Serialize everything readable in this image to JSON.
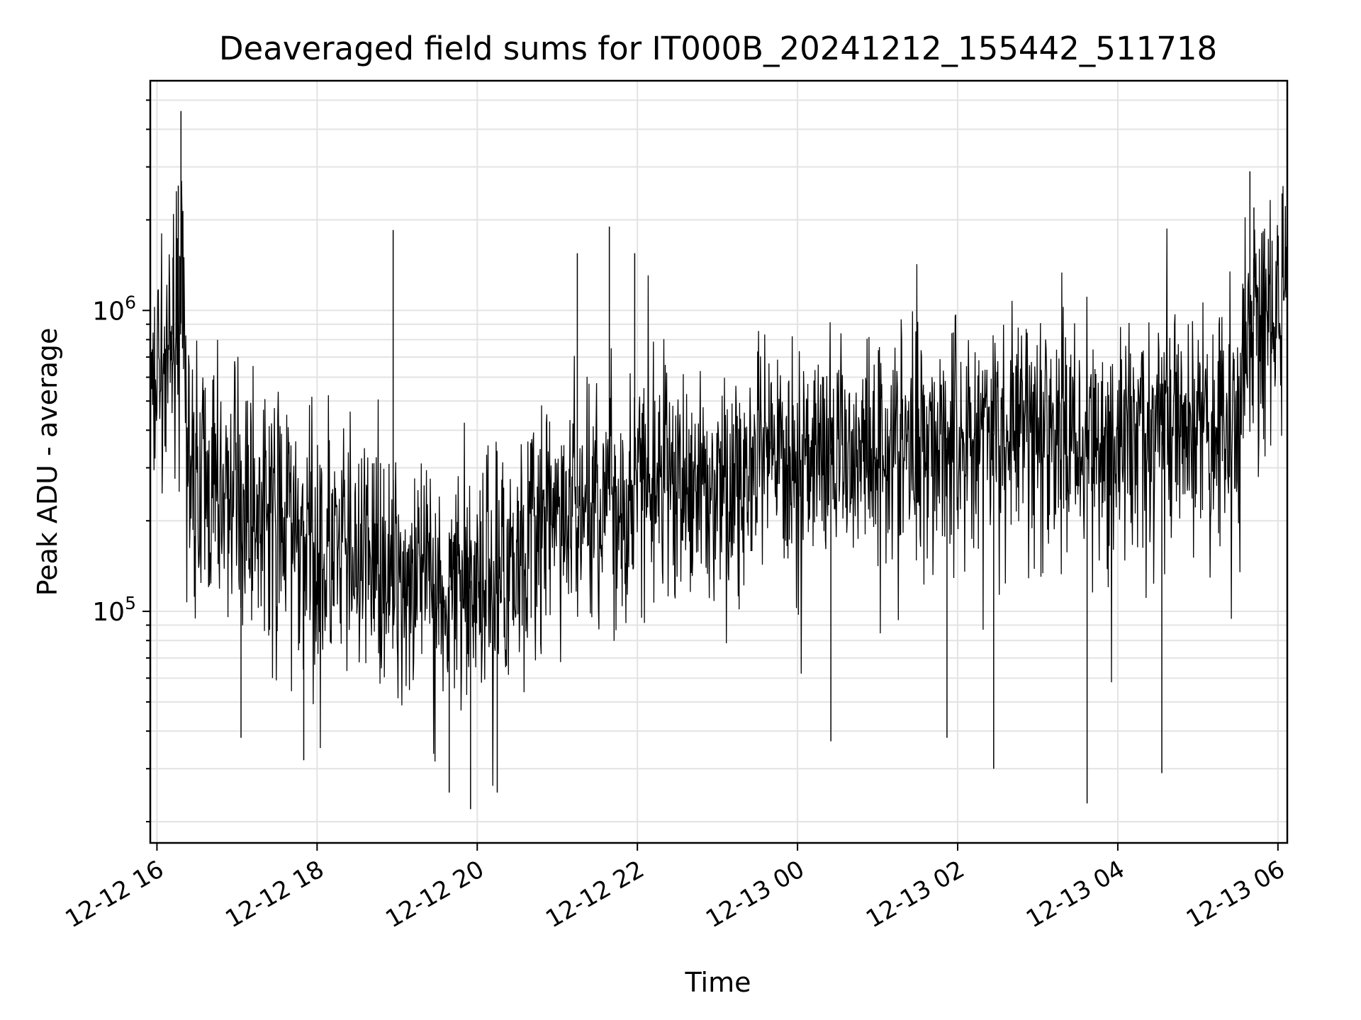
{
  "chart_data": {
    "type": "line",
    "title": "Deaveraged field sums for IT000B_20241212_155442_511718",
    "xlabel": "Time",
    "ylabel": "Peak ADU - average",
    "x_scale": "time",
    "y_scale": "log",
    "xlim": [
      "2024-12-12 15:55",
      "2024-12-13 06:07"
    ],
    "ylim": [
      17000,
      5800000
    ],
    "grid": true,
    "legend": "none",
    "line_color": "#000000",
    "x_ticks": [
      {
        "time": "2024-12-12 16:00",
        "label": "12-12 16"
      },
      {
        "time": "2024-12-12 18:00",
        "label": "12-12 18"
      },
      {
        "time": "2024-12-12 20:00",
        "label": "12-12 20"
      },
      {
        "time": "2024-12-12 22:00",
        "label": "12-12 22"
      },
      {
        "time": "2024-12-13 00:00",
        "label": "12-13 00"
      },
      {
        "time": "2024-12-13 02:00",
        "label": "12-13 02"
      },
      {
        "time": "2024-12-13 04:00",
        "label": "12-13 04"
      },
      {
        "time": "2024-12-13 06:00",
        "label": "12-13 06"
      }
    ],
    "y_ticks": [
      {
        "value": 100000,
        "base": "10",
        "exp": "5"
      },
      {
        "value": 1000000,
        "base": "10",
        "exp": "6"
      }
    ],
    "series": [
      {
        "points": [
          [
            "2024-12-12 15:55",
            380000
          ],
          [
            "2024-12-12 16:00",
            650000
          ],
          [
            "2024-12-12 16:05",
            720000
          ],
          [
            "2024-12-12 16:10",
            760000
          ],
          [
            "2024-12-12 16:15",
            950000
          ],
          [
            "2024-12-12 16:20",
            880000
          ],
          [
            "2024-12-12 16:25",
            280000
          ],
          [
            "2024-12-12 16:35",
            260000
          ],
          [
            "2024-12-12 16:45",
            250000
          ],
          [
            "2024-12-12 17:00",
            240000
          ],
          [
            "2024-12-12 17:15",
            230000
          ],
          [
            "2024-12-12 17:30",
            210000
          ],
          [
            "2024-12-12 17:45",
            180000
          ],
          [
            "2024-12-12 18:00",
            160000
          ],
          [
            "2024-12-12 18:15",
            155000
          ],
          [
            "2024-12-12 18:30",
            150000
          ],
          [
            "2024-12-12 18:45",
            140000
          ],
          [
            "2024-12-12 19:00",
            135000
          ],
          [
            "2024-12-12 19:15",
            130000
          ],
          [
            "2024-12-12 19:30",
            125000
          ],
          [
            "2024-12-12 19:45",
            120000
          ],
          [
            "2024-12-12 20:00",
            130000
          ],
          [
            "2024-12-12 20:15",
            145000
          ],
          [
            "2024-12-12 20:30",
            165000
          ],
          [
            "2024-12-12 20:45",
            185000
          ],
          [
            "2024-12-12 21:00",
            205000
          ],
          [
            "2024-12-12 21:15",
            220000
          ],
          [
            "2024-12-12 21:30",
            235000
          ],
          [
            "2024-12-12 21:45",
            250000
          ],
          [
            "2024-12-12 22:00",
            265000
          ],
          [
            "2024-12-12 22:15",
            275000
          ],
          [
            "2024-12-12 22:30",
            280000
          ],
          [
            "2024-12-12 22:45",
            270000
          ],
          [
            "2024-12-12 23:00",
            265000
          ],
          [
            "2024-12-12 23:15",
            275000
          ],
          [
            "2024-12-12 23:30",
            290000
          ],
          [
            "2024-12-12 23:45",
            310000
          ],
          [
            "2024-12-13 00:00",
            330000
          ],
          [
            "2024-12-13 00:15",
            345000
          ],
          [
            "2024-12-13 00:30",
            350000
          ],
          [
            "2024-12-13 00:45",
            355000
          ],
          [
            "2024-12-13 01:00",
            360000
          ],
          [
            "2024-12-13 01:15",
            365000
          ],
          [
            "2024-12-13 01:30",
            370000
          ],
          [
            "2024-12-13 01:45",
            375000
          ],
          [
            "2024-12-13 02:00",
            380000
          ],
          [
            "2024-12-13 02:15",
            385000
          ],
          [
            "2024-12-13 02:30",
            390000
          ],
          [
            "2024-12-13 02:45",
            390000
          ],
          [
            "2024-12-13 03:00",
            395000
          ],
          [
            "2024-12-13 03:15",
            400000
          ],
          [
            "2024-12-13 03:30",
            400000
          ],
          [
            "2024-12-13 03:45",
            395000
          ],
          [
            "2024-12-13 04:00",
            390000
          ],
          [
            "2024-12-13 04:15",
            390000
          ],
          [
            "2024-12-13 04:30",
            395000
          ],
          [
            "2024-12-13 04:45",
            400000
          ],
          [
            "2024-12-13 05:00",
            395000
          ],
          [
            "2024-12-13 05:15",
            400000
          ],
          [
            "2024-12-13 05:30",
            420000
          ],
          [
            "2024-12-13 05:35",
            700000
          ],
          [
            "2024-12-13 05:40",
            950000
          ],
          [
            "2024-12-13 05:50",
            1000000
          ],
          [
            "2024-12-13 06:00",
            980000
          ],
          [
            "2024-12-13 06:07",
            950000
          ]
        ],
        "spikes": [
          [
            "2024-12-12 16:18",
            4600000
          ],
          [
            "2024-12-12 16:16",
            2600000
          ],
          [
            "2024-12-12 16:12",
            1500000
          ],
          [
            "2024-12-12 18:57",
            1850000
          ],
          [
            "2024-12-12 21:15",
            1550000
          ],
          [
            "2024-12-12 21:39",
            1900000
          ],
          [
            "2024-12-12 21:58",
            1550000
          ],
          [
            "2024-12-13 05:39",
            2900000
          ],
          [
            "2024-12-13 05:42",
            2200000
          ],
          [
            "2024-12-12 17:03",
            38000
          ],
          [
            "2024-12-12 17:50",
            32000
          ],
          [
            "2024-12-12 19:39",
            25000
          ],
          [
            "2024-12-12 19:55",
            22000
          ],
          [
            "2024-12-12 20:15",
            25000
          ],
          [
            "2024-12-13 02:27",
            30000
          ],
          [
            "2024-12-13 03:37",
            23000
          ],
          [
            "2024-12-13 04:33",
            29000
          ],
          [
            "2024-12-13 00:25",
            37000
          ],
          [
            "2024-12-13 01:52",
            38000
          ]
        ]
      }
    ]
  }
}
